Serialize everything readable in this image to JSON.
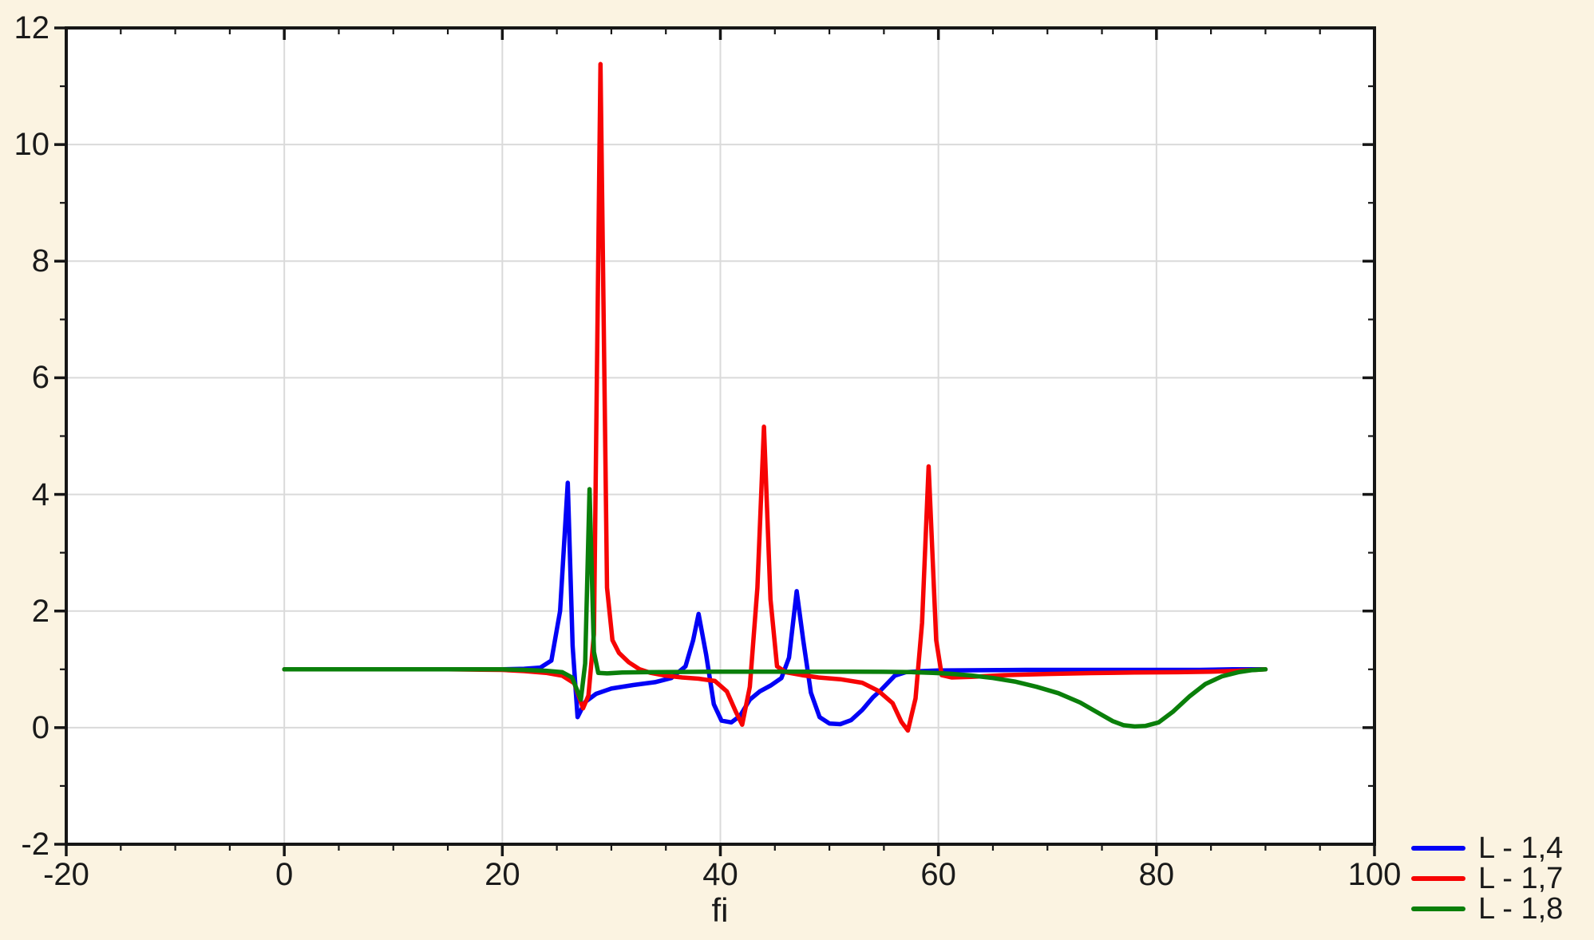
{
  "colors": {
    "background": "#FBF3E1",
    "plot_background": "#FFFFFF",
    "grid": "#DADADA",
    "axis": "#161616",
    "text": "#1A1A1A",
    "series_blue": "#0202F6",
    "series_red": "#F70404",
    "series_green": "#0A7F0A"
  },
  "chart_data": {
    "type": "line",
    "title": "",
    "xlabel": "fi",
    "ylabel": "",
    "xlim": [
      -20,
      100
    ],
    "ylim": [
      -2,
      12
    ],
    "x_major_ticks": [
      -20,
      0,
      20,
      40,
      60,
      80,
      100
    ],
    "x_tick_labels": [
      "-20",
      "0",
      "20",
      "40",
      "60",
      "80",
      "100"
    ],
    "x_minor_step": 5,
    "y_major_ticks": [
      -2,
      0,
      2,
      4,
      6,
      8,
      10,
      12
    ],
    "y_tick_labels": [
      "-2",
      "0",
      "2",
      "4",
      "6",
      "8",
      "10",
      "12"
    ],
    "y_minor_step": 1,
    "grid": "major-only",
    "legend_position": "bottom-right-outside",
    "series": [
      {
        "name": "L - 1,4",
        "color": "#0202F6",
        "points": [
          [
            0,
            1
          ],
          [
            5,
            1
          ],
          [
            10,
            1
          ],
          [
            15,
            1
          ],
          [
            20,
            1
          ],
          [
            22,
            1.01
          ],
          [
            23.5,
            1.03
          ],
          [
            24.5,
            1.15
          ],
          [
            25.3,
            2.0
          ],
          [
            26,
            4.2
          ],
          [
            26.45,
            1.4
          ],
          [
            26.9,
            0.18
          ],
          [
            27.6,
            0.44
          ],
          [
            28.6,
            0.58
          ],
          [
            30,
            0.67
          ],
          [
            32,
            0.73
          ],
          [
            34,
            0.78
          ],
          [
            35.5,
            0.85
          ],
          [
            36.8,
            1.05
          ],
          [
            37.5,
            1.5
          ],
          [
            38,
            1.95
          ],
          [
            38.7,
            1.25
          ],
          [
            39.4,
            0.4
          ],
          [
            40.1,
            0.12
          ],
          [
            41,
            0.09
          ],
          [
            41.8,
            0.2
          ],
          [
            42.7,
            0.48
          ],
          [
            43.6,
            0.62
          ],
          [
            44.6,
            0.72
          ],
          [
            45.6,
            0.85
          ],
          [
            46.3,
            1.2
          ],
          [
            47,
            2.34
          ],
          [
            47.6,
            1.5
          ],
          [
            48.3,
            0.6
          ],
          [
            49.1,
            0.18
          ],
          [
            50,
            0.07
          ],
          [
            51,
            0.06
          ],
          [
            52,
            0.13
          ],
          [
            53,
            0.3
          ],
          [
            54,
            0.52
          ],
          [
            54.7,
            0.64
          ],
          [
            56,
            0.89
          ],
          [
            57,
            0.95
          ],
          [
            58.5,
            0.97
          ],
          [
            60,
            0.98
          ],
          [
            64,
            0.985
          ],
          [
            68,
            0.99
          ],
          [
            72,
            0.99
          ],
          [
            76,
            0.99
          ],
          [
            80,
            0.99
          ],
          [
            84,
            0.99
          ],
          [
            87,
            1
          ],
          [
            90,
            1
          ]
        ]
      },
      {
        "name": "L - 1,7",
        "color": "#F70404",
        "points": [
          [
            0,
            1
          ],
          [
            5,
            1
          ],
          [
            10,
            1
          ],
          [
            15,
            1
          ],
          [
            18,
            0.995
          ],
          [
            20,
            0.99
          ],
          [
            22,
            0.97
          ],
          [
            24,
            0.94
          ],
          [
            25.5,
            0.89
          ],
          [
            26.6,
            0.76
          ],
          [
            27.4,
            0.33
          ],
          [
            27.9,
            0.55
          ],
          [
            28.4,
            1.6
          ],
          [
            29,
            11.38
          ],
          [
            29.6,
            2.4
          ],
          [
            30.1,
            1.5
          ],
          [
            30.7,
            1.28
          ],
          [
            31.6,
            1.12
          ],
          [
            32.6,
            1.0
          ],
          [
            33.6,
            0.94
          ],
          [
            35,
            0.89
          ],
          [
            36.5,
            0.86
          ],
          [
            38,
            0.84
          ],
          [
            39.5,
            0.8
          ],
          [
            40.6,
            0.62
          ],
          [
            41.4,
            0.28
          ],
          [
            42,
            0.05
          ],
          [
            42.7,
            0.7
          ],
          [
            43.4,
            2.4
          ],
          [
            44,
            5.16
          ],
          [
            44.6,
            2.2
          ],
          [
            45.2,
            1.05
          ],
          [
            46,
            0.95
          ],
          [
            47.5,
            0.9
          ],
          [
            49,
            0.86
          ],
          [
            51,
            0.83
          ],
          [
            53,
            0.77
          ],
          [
            54.5,
            0.63
          ],
          [
            55.8,
            0.42
          ],
          [
            56.6,
            0.1
          ],
          [
            57.2,
            -0.05
          ],
          [
            57.9,
            0.5
          ],
          [
            58.5,
            1.8
          ],
          [
            59.1,
            4.48
          ],
          [
            59.8,
            1.5
          ],
          [
            60.3,
            0.9
          ],
          [
            61.2,
            0.86
          ],
          [
            63,
            0.87
          ],
          [
            66,
            0.9
          ],
          [
            70,
            0.92
          ],
          [
            74,
            0.935
          ],
          [
            78,
            0.945
          ],
          [
            82,
            0.95
          ],
          [
            85,
            0.96
          ],
          [
            87.5,
            0.975
          ],
          [
            89,
            0.99
          ],
          [
            90,
            1
          ]
        ]
      },
      {
        "name": "L - 1,8",
        "color": "#0A7F0A",
        "points": [
          [
            0,
            1
          ],
          [
            5,
            1
          ],
          [
            10,
            1
          ],
          [
            15,
            1
          ],
          [
            20,
            1
          ],
          [
            22,
            0.99
          ],
          [
            24,
            0.975
          ],
          [
            25.5,
            0.95
          ],
          [
            26.4,
            0.86
          ],
          [
            27.2,
            0.48
          ],
          [
            27.6,
            1.1
          ],
          [
            28,
            4.09
          ],
          [
            28.4,
            1.3
          ],
          [
            28.8,
            0.94
          ],
          [
            29.6,
            0.93
          ],
          [
            31,
            0.945
          ],
          [
            33,
            0.95
          ],
          [
            36,
            0.955
          ],
          [
            40,
            0.96
          ],
          [
            44,
            0.96
          ],
          [
            48,
            0.96
          ],
          [
            52,
            0.96
          ],
          [
            55,
            0.958
          ],
          [
            57.5,
            0.952
          ],
          [
            59.5,
            0.94
          ],
          [
            61,
            0.925
          ],
          [
            63,
            0.895
          ],
          [
            65,
            0.85
          ],
          [
            67,
            0.79
          ],
          [
            69,
            0.7
          ],
          [
            71,
            0.59
          ],
          [
            73,
            0.43
          ],
          [
            74.5,
            0.27
          ],
          [
            76,
            0.11
          ],
          [
            77,
            0.04
          ],
          [
            78,
            0.02
          ],
          [
            79,
            0.03
          ],
          [
            80.2,
            0.09
          ],
          [
            81.5,
            0.27
          ],
          [
            83,
            0.53
          ],
          [
            84.5,
            0.75
          ],
          [
            86,
            0.88
          ],
          [
            87.5,
            0.95
          ],
          [
            88.7,
            0.985
          ],
          [
            90,
            1
          ]
        ]
      }
    ]
  }
}
